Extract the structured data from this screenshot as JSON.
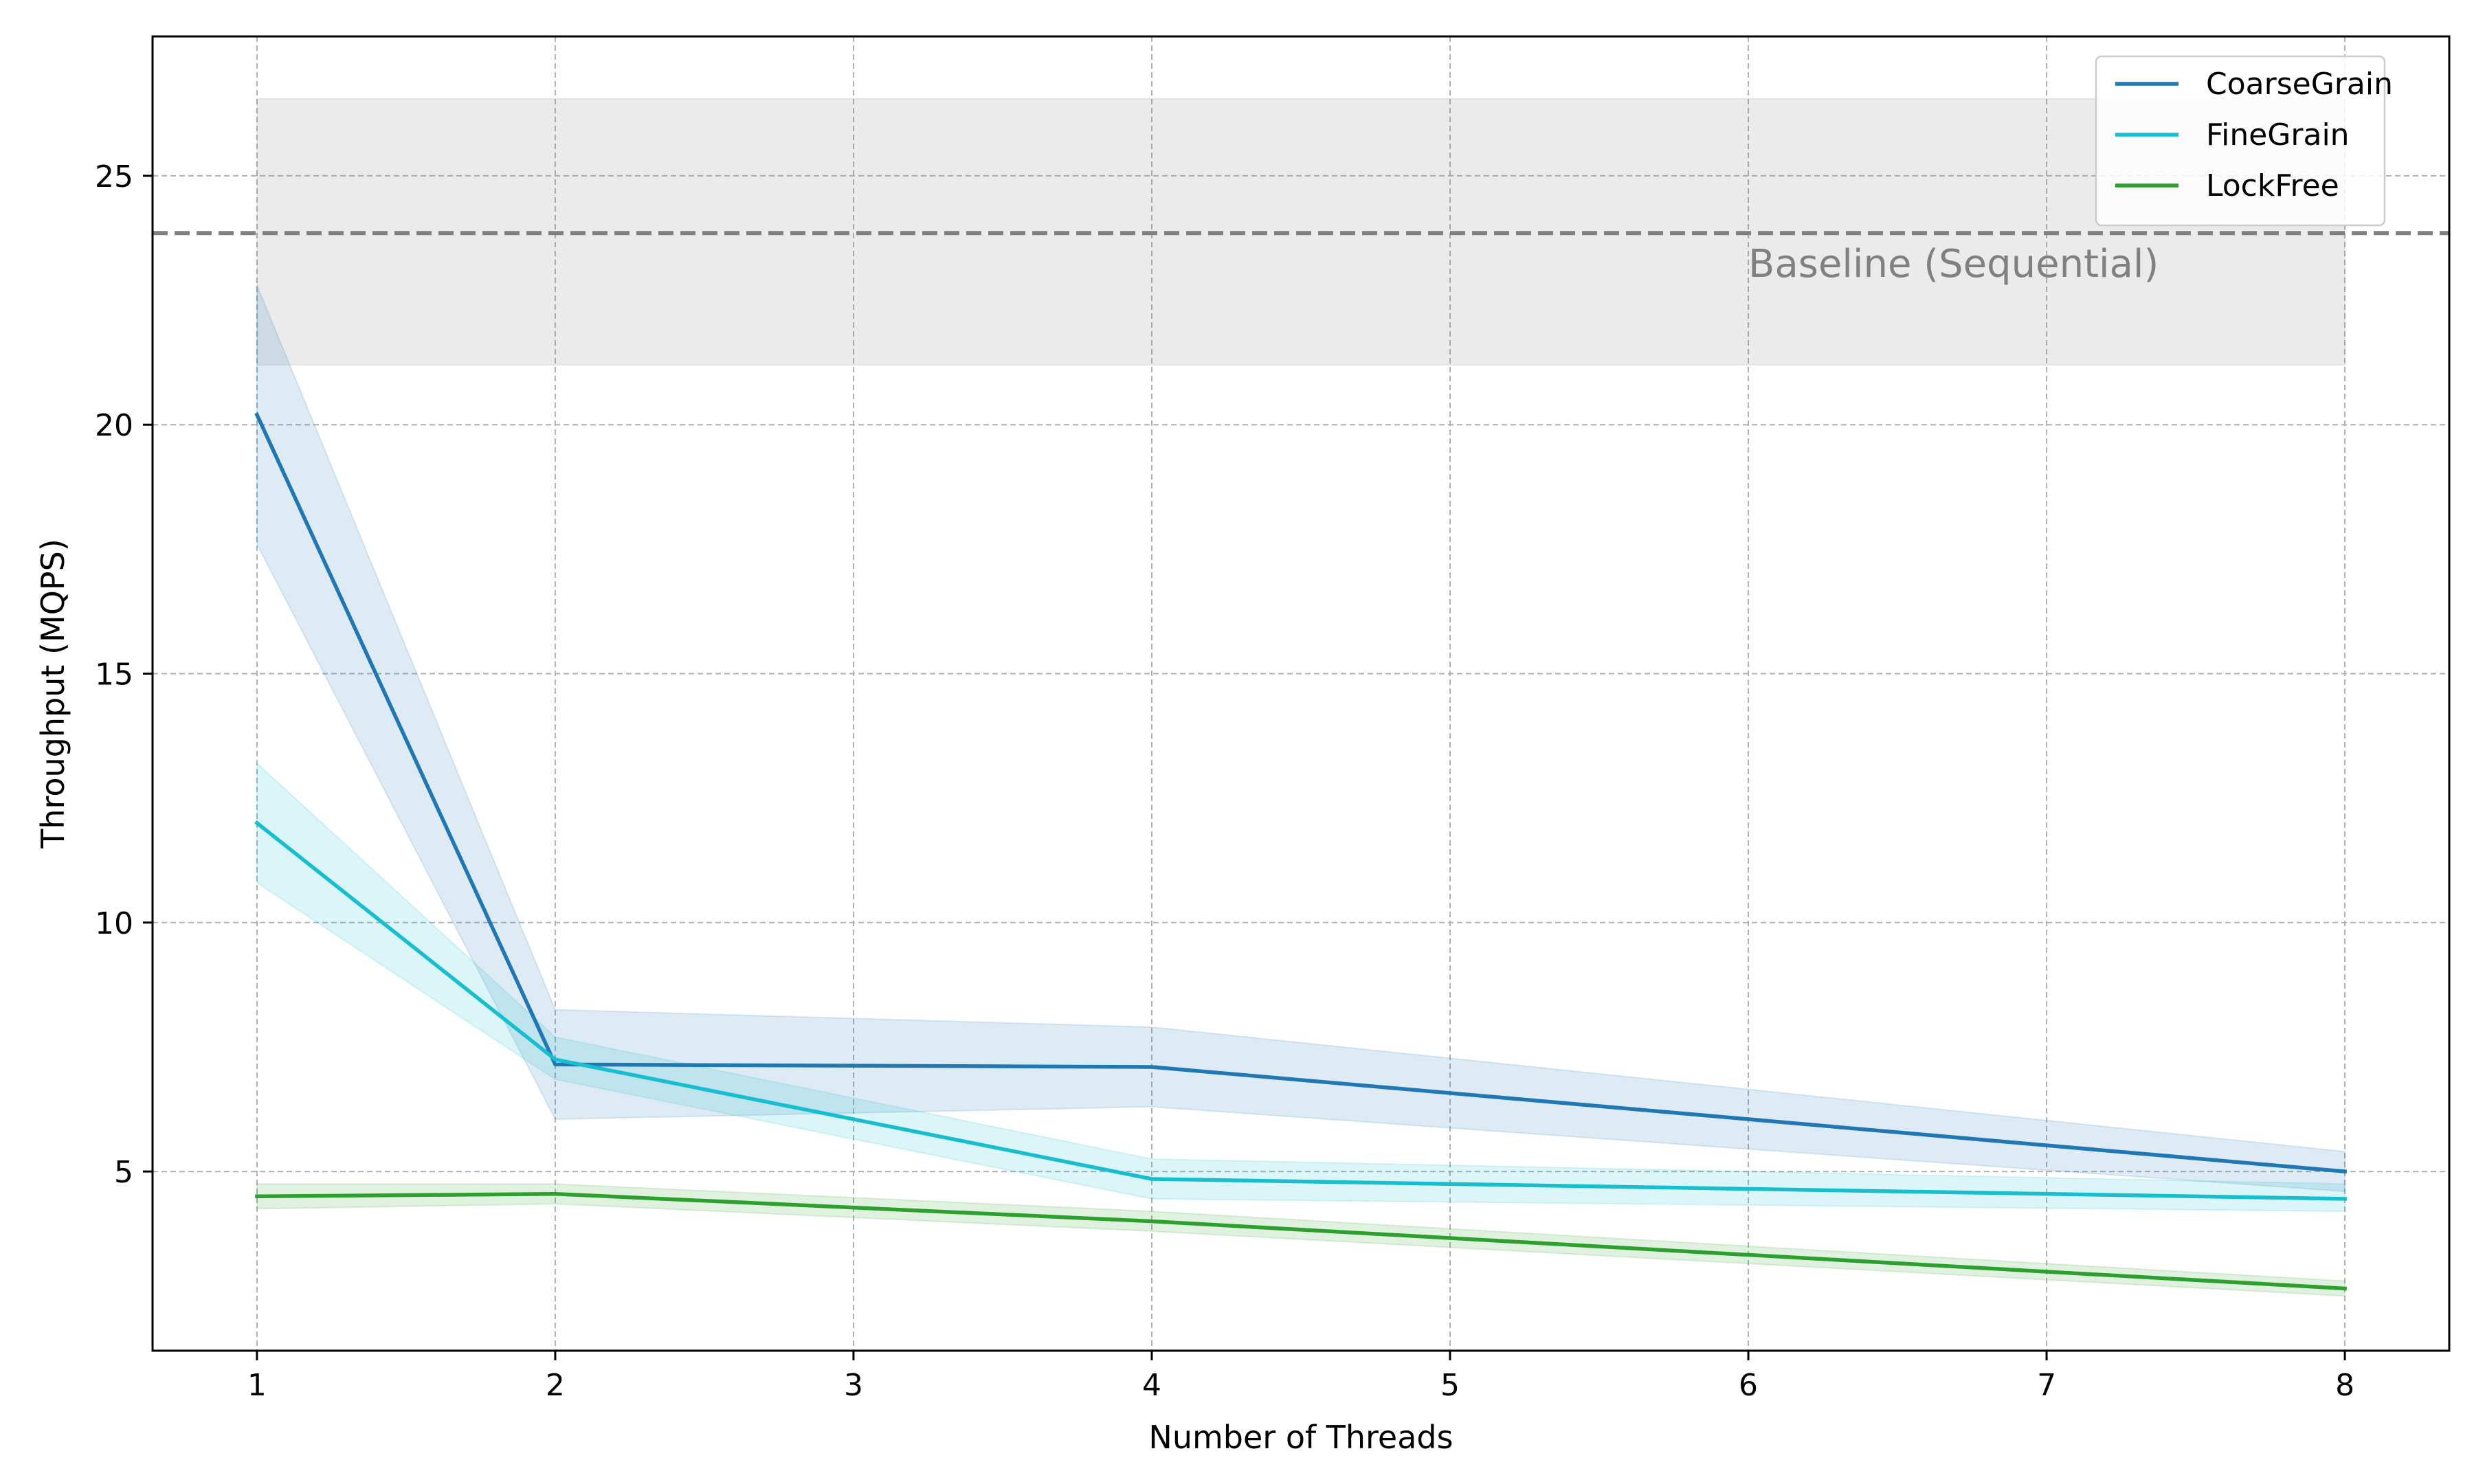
{
  "chart_data": {
    "type": "line",
    "xlabel": "Number of Threads",
    "ylabel": "Throughput (MQPS)",
    "x": [
      1,
      2,
      4,
      8
    ],
    "x_ticks": [
      1,
      2,
      3,
      4,
      5,
      6,
      7,
      8
    ],
    "y_ticks": [
      5,
      10,
      15,
      20,
      25
    ],
    "xlim": [
      0.65,
      8.35
    ],
    "ylim": [
      1.4,
      27.8
    ],
    "grid": true,
    "legend_position": "top-right",
    "series": [
      {
        "name": "CoarseGrain",
        "color": "#1f77b4",
        "values": [
          20.2,
          7.15,
          7.1,
          5.0
        ],
        "lower": [
          17.6,
          6.05,
          6.3,
          4.6
        ],
        "upper": [
          22.8,
          8.25,
          7.9,
          5.4
        ]
      },
      {
        "name": "FineGrain",
        "color": "#17becf",
        "values": [
          12.0,
          7.25,
          4.85,
          4.45
        ],
        "lower": [
          10.8,
          6.85,
          4.45,
          4.2
        ],
        "upper": [
          13.2,
          7.7,
          5.25,
          4.75
        ]
      },
      {
        "name": "LockFree",
        "color": "#2ca02c",
        "values": [
          4.5,
          4.55,
          4.0,
          2.65
        ],
        "lower": [
          4.25,
          4.35,
          3.8,
          2.5
        ],
        "upper": [
          4.75,
          4.75,
          4.2,
          2.8
        ]
      }
    ],
    "baseline": {
      "label": "Baseline (Sequential)",
      "value": 23.85,
      "band": [
        21.2,
        26.55
      ],
      "band_x": [
        1,
        8
      ],
      "color": "#808080"
    }
  }
}
